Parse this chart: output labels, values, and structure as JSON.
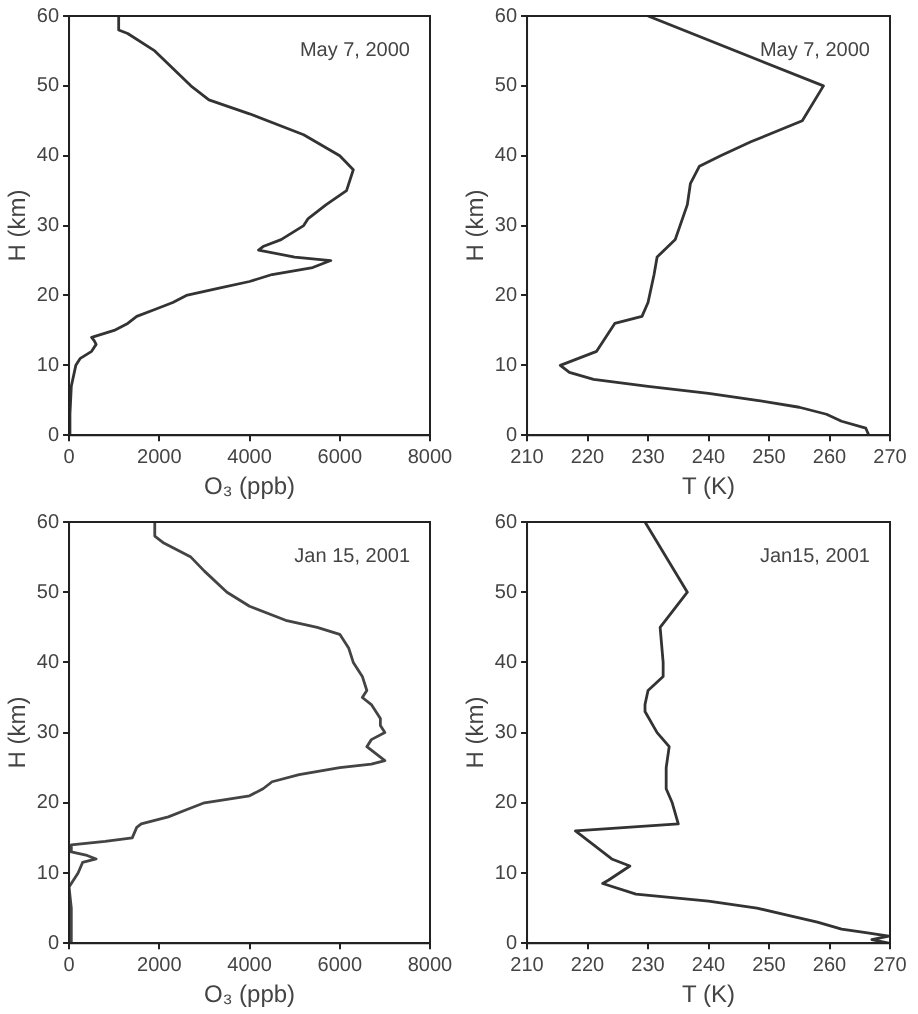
{
  "chart_data": [
    {
      "type": "line",
      "xlabel": "O₃ (ppb)",
      "ylabel": "H (km)",
      "annotations": [
        "May 7, 2000"
      ],
      "xlim": [
        0,
        8000
      ],
      "xticks": [
        0,
        2000,
        4000,
        6000,
        8000
      ],
      "ylim": [
        0,
        60
      ],
      "yticks": [
        0,
        10,
        20,
        30,
        40,
        50,
        60
      ],
      "grid": false,
      "marker": "none",
      "line_style": "solid",
      "series": [
        {
          "color": "#333333",
          "x": [
            20,
            20,
            50,
            150,
            250,
            500,
            600,
            560,
            500,
            1000,
            1300,
            1500,
            1900,
            2300,
            2600,
            3300,
            4000,
            4500,
            5400,
            5800,
            5000,
            4200,
            4300,
            4700,
            5200,
            5300,
            5700,
            6150,
            6300,
            6000,
            5200,
            4000,
            3100,
            2700,
            1900,
            1300,
            1100,
            1100
          ],
          "values": [
            0,
            3,
            7,
            10,
            11,
            12,
            13,
            13.5,
            14,
            15,
            16,
            17,
            18,
            19,
            20,
            21,
            22,
            23,
            24,
            25,
            25.5,
            26.5,
            27,
            28,
            30,
            31,
            33,
            35,
            38,
            40,
            43,
            46,
            48,
            50,
            55,
            57.5,
            58,
            60
          ]
        }
      ]
    },
    {
      "type": "line",
      "xlabel": "T (K)",
      "ylabel": "H (km)",
      "annotations": [
        "May 7, 2000"
      ],
      "xlim": [
        210,
        270
      ],
      "xticks": [
        210,
        220,
        230,
        240,
        250,
        260,
        270
      ],
      "ylim": [
        0,
        60
      ],
      "yticks": [
        0,
        10,
        20,
        30,
        40,
        50,
        60
      ],
      "grid": false,
      "marker": "none",
      "line_style": "solid",
      "series": [
        {
          "color": "#333333",
          "x": [
            266.5,
            266,
            262,
            259.5,
            255,
            248,
            240,
            230,
            221,
            217,
            215.5,
            221.5,
            224.5,
            229,
            230,
            231,
            231.5,
            234.5,
            236.5,
            237,
            238.5,
            242,
            247,
            255.5,
            259,
            230
          ],
          "values": [
            0,
            1,
            2,
            3,
            4,
            5,
            6,
            7,
            8,
            9,
            10,
            12,
            16,
            17,
            19,
            23,
            25.5,
            28,
            33,
            36,
            38.5,
            40,
            42,
            45,
            50,
            60
          ]
        }
      ]
    },
    {
      "type": "line",
      "xlabel": "O₃ (ppb)",
      "ylabel": "H (km)",
      "annotations": [
        "Jan 15, 2001"
      ],
      "xlim": [
        0,
        8000
      ],
      "xticks": [
        0,
        2000,
        4000,
        6000,
        8000
      ],
      "ylim": [
        0,
        60
      ],
      "yticks": [
        0,
        10,
        20,
        30,
        40,
        50,
        60
      ],
      "grid": false,
      "marker": "none",
      "line_style": "solid",
      "series": [
        {
          "color": "#444444",
          "x": [
            30,
            50,
            0,
            100,
            200,
            300,
            600,
            400,
            50,
            50,
            800,
            1400,
            1500,
            1600,
            2200,
            2600,
            3000,
            4000,
            4300,
            4500,
            5100,
            6000,
            6700,
            7000,
            6800,
            6600,
            6700,
            7000,
            6900,
            6900,
            6700,
            6500,
            6600,
            6500,
            6300,
            6200,
            6000,
            5500,
            4800,
            4000,
            3500,
            3000,
            2700,
            2100,
            1900,
            1900
          ],
          "values": [
            0,
            5,
            8,
            9,
            10,
            11.5,
            12,
            12.5,
            13,
            14,
            14.5,
            15,
            16.5,
            17,
            18,
            19,
            20,
            21,
            22,
            23,
            24,
            25,
            25.5,
            26,
            27,
            28,
            29,
            30,
            31,
            32,
            34,
            35,
            36,
            38,
            40,
            42,
            44,
            45,
            46,
            48,
            50,
            53,
            55,
            57,
            58,
            60
          ]
        }
      ]
    },
    {
      "type": "line",
      "xlabel": "T (K)",
      "ylabel": "H (km)",
      "annotations": [
        "Jan15, 2001"
      ],
      "xlim": [
        210,
        270
      ],
      "xticks": [
        210,
        220,
        230,
        240,
        250,
        260,
        270
      ],
      "ylim": [
        0,
        60
      ],
      "yticks": [
        0,
        10,
        20,
        30,
        40,
        50,
        60
      ],
      "grid": false,
      "marker": "none",
      "line_style": "solid",
      "series": [
        {
          "color": "#333333",
          "x": [
            269.8,
            267,
            269.8,
            266,
            262,
            258,
            253,
            248,
            240,
            228,
            222.5,
            223.5,
            227,
            224,
            218,
            235,
            234,
            233,
            233,
            233.5,
            231.5,
            229.5,
            229.5,
            230,
            232.5,
            232.5,
            232,
            236.5,
            229.5
          ],
          "values": [
            0,
            0.5,
            1,
            1.5,
            2,
            3,
            4,
            5,
            6,
            7,
            8.5,
            9,
            11,
            12,
            16,
            17,
            20,
            22,
            25,
            28,
            30,
            33,
            34,
            36,
            38,
            40,
            45,
            50,
            60
          ]
        }
      ]
    }
  ]
}
